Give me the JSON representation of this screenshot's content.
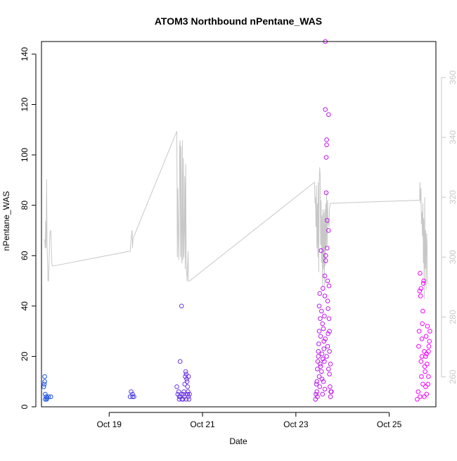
{
  "chart_data": {
    "type": "scatter",
    "title": "ATOM3 Northbound nPentane_WAS",
    "xlabel": "Date",
    "ylabel": "nPentane_WAS",
    "y2label": "",
    "xlim": [
      17.55,
      26.0
    ],
    "ylim": [
      0,
      145
    ],
    "y2lim": [
      250,
      372
    ],
    "x_ticks": [
      {
        "value": 19.0,
        "label": "Oct 19"
      },
      {
        "value": 21.0,
        "label": "Oct 21"
      },
      {
        "value": 23.0,
        "label": "Oct 23"
      },
      {
        "value": 25.0,
        "label": "Oct 25"
      }
    ],
    "y_ticks": [
      0,
      20,
      40,
      60,
      80,
      100,
      120,
      140
    ],
    "y2_ticks": [
      260,
      280,
      300,
      320,
      340,
      360
    ],
    "grid": false,
    "point_style": "open-circle",
    "point_color_gradient": [
      "#1a55e6",
      "#8a2be2",
      "#ff00ff"
    ],
    "line_color": "#c8c8c8",
    "axis_color": "#000000",
    "y2_axis_color": "#c8c8c8",
    "points": [
      [
        17.62,
        12
      ],
      [
        17.62,
        10
      ],
      [
        17.61,
        9
      ],
      [
        17.6,
        8
      ],
      [
        17.63,
        5
      ],
      [
        17.65,
        4
      ],
      [
        17.63,
        3
      ],
      [
        17.66,
        3
      ],
      [
        17.67,
        3.5
      ],
      [
        17.7,
        4
      ],
      [
        17.75,
        4
      ],
      [
        19.45,
        4
      ],
      [
        19.47,
        6
      ],
      [
        19.5,
        5
      ],
      [
        19.5,
        4
      ],
      [
        19.53,
        4
      ],
      [
        20.45,
        8
      ],
      [
        20.5,
        3
      ],
      [
        20.52,
        18
      ],
      [
        20.55,
        40
      ],
      [
        20.5,
        4
      ],
      [
        20.55,
        5
      ],
      [
        20.58,
        3
      ],
      [
        20.6,
        6
      ],
      [
        20.62,
        9
      ],
      [
        20.63,
        12
      ],
      [
        20.64,
        14
      ],
      [
        20.65,
        13
      ],
      [
        20.66,
        11
      ],
      [
        20.67,
        10
      ],
      [
        20.68,
        8
      ],
      [
        20.69,
        6
      ],
      [
        20.7,
        4
      ],
      [
        20.7,
        12
      ],
      [
        20.71,
        3
      ],
      [
        20.72,
        5
      ],
      [
        20.47,
        5
      ],
      [
        20.49,
        6
      ],
      [
        20.53,
        4
      ],
      [
        20.56,
        3
      ],
      [
        20.59,
        5
      ],
      [
        20.61,
        4
      ],
      [
        20.65,
        3
      ],
      [
        20.68,
        5
      ],
      [
        23.42,
        3
      ],
      [
        23.43,
        5
      ],
      [
        23.45,
        6
      ],
      [
        23.45,
        10
      ],
      [
        23.46,
        15
      ],
      [
        23.47,
        18
      ],
      [
        23.48,
        20
      ],
      [
        23.48,
        22
      ],
      [
        23.49,
        25
      ],
      [
        23.5,
        12
      ],
      [
        23.5,
        30
      ],
      [
        23.5,
        40
      ],
      [
        23.51,
        45
      ],
      [
        23.52,
        17
      ],
      [
        23.52,
        35
      ],
      [
        23.53,
        28
      ],
      [
        23.54,
        62
      ],
      [
        23.55,
        14
      ],
      [
        23.55,
        38
      ],
      [
        23.56,
        21
      ],
      [
        23.57,
        33
      ],
      [
        23.58,
        19
      ],
      [
        23.58,
        47
      ],
      [
        23.59,
        10
      ],
      [
        23.6,
        23
      ],
      [
        23.6,
        26
      ],
      [
        23.61,
        36
      ],
      [
        23.62,
        44
      ],
      [
        23.62,
        52
      ],
      [
        23.63,
        145
      ],
      [
        23.63,
        118
      ],
      [
        23.64,
        58
      ],
      [
        23.64,
        60
      ],
      [
        23.65,
        99
      ],
      [
        23.65,
        85
      ],
      [
        23.66,
        104
      ],
      [
        23.66,
        106
      ],
      [
        23.67,
        74
      ],
      [
        23.67,
        63
      ],
      [
        23.68,
        50
      ],
      [
        23.68,
        42
      ],
      [
        23.69,
        39
      ],
      [
        23.69,
        29
      ],
      [
        23.7,
        116
      ],
      [
        23.7,
        70
      ],
      [
        23.71,
        48
      ],
      [
        23.71,
        35
      ],
      [
        23.72,
        22
      ],
      [
        23.72,
        13
      ],
      [
        23.73,
        8
      ],
      [
        23.74,
        4
      ],
      [
        23.75,
        6
      ],
      [
        23.76,
        6
      ],
      [
        23.44,
        9
      ],
      [
        23.46,
        4
      ],
      [
        23.51,
        8
      ],
      [
        23.53,
        16
      ],
      [
        23.56,
        11
      ],
      [
        23.59,
        31
      ],
      [
        23.61,
        18
      ],
      [
        23.63,
        27
      ],
      [
        23.66,
        20
      ],
      [
        23.68,
        24
      ],
      [
        23.7,
        15
      ],
      [
        23.72,
        30
      ],
      [
        23.74,
        17
      ],
      [
        23.57,
        5
      ],
      [
        23.62,
        7
      ],
      [
        25.6,
        3
      ],
      [
        25.62,
        6
      ],
      [
        25.63,
        24
      ],
      [
        25.64,
        30
      ],
      [
        25.65,
        46
      ],
      [
        25.66,
        53
      ],
      [
        25.67,
        44
      ],
      [
        25.68,
        47
      ],
      [
        25.69,
        12
      ],
      [
        25.7,
        20
      ],
      [
        25.7,
        27
      ],
      [
        25.71,
        33
      ],
      [
        25.72,
        38
      ],
      [
        25.73,
        49
      ],
      [
        25.74,
        50
      ],
      [
        25.75,
        22
      ],
      [
        25.75,
        4
      ],
      [
        25.76,
        16
      ],
      [
        25.77,
        14
      ],
      [
        25.78,
        20
      ],
      [
        25.79,
        28
      ],
      [
        25.8,
        21
      ],
      [
        25.81,
        17
      ],
      [
        25.82,
        32
      ],
      [
        25.83,
        9
      ],
      [
        25.84,
        22
      ],
      [
        25.85,
        24
      ],
      [
        25.86,
        26
      ],
      [
        25.87,
        30
      ],
      [
        25.66,
        4
      ],
      [
        25.68,
        18
      ],
      [
        25.72,
        9
      ],
      [
        25.78,
        8
      ],
      [
        25.8,
        5
      ],
      [
        25.84,
        12
      ]
    ],
    "line_secondary": [
      [
        17.62,
        306
      ],
      [
        17.63,
        303
      ],
      [
        17.64,
        312
      ],
      [
        17.65,
        303
      ],
      [
        17.66,
        326
      ],
      [
        17.67,
        303
      ],
      [
        17.68,
        299
      ],
      [
        17.69,
        292
      ],
      [
        17.7,
        292
      ],
      [
        17.72,
        303
      ],
      [
        17.73,
        308
      ],
      [
        17.75,
        309
      ],
      [
        17.77,
        298
      ],
      [
        17.79,
        297
      ],
      [
        19.45,
        302
      ],
      [
        19.47,
        306
      ],
      [
        19.49,
        309
      ],
      [
        19.5,
        303
      ],
      [
        19.51,
        306
      ],
      [
        19.53,
        307
      ],
      [
        20.45,
        342
      ],
      [
        20.46,
        300
      ],
      [
        20.47,
        323
      ],
      [
        20.48,
        311
      ],
      [
        20.49,
        299
      ],
      [
        20.5,
        311
      ],
      [
        20.51,
        337
      ],
      [
        20.52,
        339
      ],
      [
        20.53,
        300
      ],
      [
        20.54,
        337
      ],
      [
        20.55,
        301
      ],
      [
        20.56,
        298
      ],
      [
        20.57,
        339
      ],
      [
        20.58,
        299
      ],
      [
        20.59,
        333
      ],
      [
        20.6,
        300
      ],
      [
        20.61,
        309
      ],
      [
        20.62,
        327
      ],
      [
        20.63,
        296
      ],
      [
        20.64,
        331
      ],
      [
        20.65,
        300
      ],
      [
        20.66,
        295
      ],
      [
        20.67,
        292
      ],
      [
        20.68,
        296
      ],
      [
        20.69,
        302
      ],
      [
        20.7,
        292
      ],
      [
        20.72,
        292
      ],
      [
        23.4,
        325
      ],
      [
        23.41,
        318
      ],
      [
        23.42,
        320
      ],
      [
        23.43,
        310
      ],
      [
        23.44,
        324
      ],
      [
        23.45,
        303
      ],
      [
        23.46,
        318
      ],
      [
        23.47,
        300
      ],
      [
        23.48,
        325
      ],
      [
        23.49,
        295
      ],
      [
        23.5,
        325
      ],
      [
        23.51,
        330
      ],
      [
        23.52,
        327
      ],
      [
        23.53,
        304
      ],
      [
        23.54,
        319
      ],
      [
        23.55,
        298
      ],
      [
        23.56,
        314
      ],
      [
        23.57,
        290
      ],
      [
        23.58,
        316
      ],
      [
        23.59,
        296
      ],
      [
        23.6,
        315
      ],
      [
        23.61,
        290
      ],
      [
        23.62,
        316
      ],
      [
        23.63,
        297
      ],
      [
        23.64,
        318
      ],
      [
        23.65,
        303
      ],
      [
        23.66,
        322
      ],
      [
        23.67,
        304
      ],
      [
        23.68,
        319
      ],
      [
        23.69,
        311
      ],
      [
        23.7,
        312
      ],
      [
        23.71,
        310
      ],
      [
        23.72,
        316
      ],
      [
        23.74,
        318
      ],
      [
        23.76,
        318
      ],
      [
        25.65,
        319
      ],
      [
        25.66,
        325
      ],
      [
        25.67,
        318
      ],
      [
        25.68,
        323
      ],
      [
        25.69,
        311
      ],
      [
        25.7,
        315
      ],
      [
        25.71,
        307
      ],
      [
        25.72,
        318
      ],
      [
        25.73,
        298
      ],
      [
        25.74,
        313
      ],
      [
        25.75,
        286
      ],
      [
        25.76,
        320
      ],
      [
        25.77,
        296
      ],
      [
        25.78,
        309
      ],
      [
        25.79,
        289
      ],
      [
        25.8,
        308
      ],
      [
        25.81,
        305
      ],
      [
        25.82,
        292
      ],
      [
        25.83,
        291
      ]
    ]
  }
}
